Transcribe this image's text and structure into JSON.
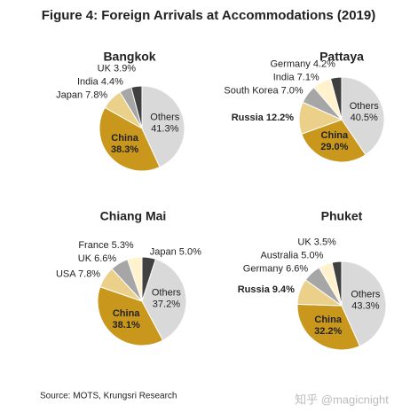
{
  "title": "Figure 4: Foreign Arrivals at Accommodations (2019)",
  "source": "Source: MOTS, Krungsri Research",
  "watermark": "知乎 @magicnight",
  "chart_data": [
    {
      "type": "pie",
      "title": "Bangkok",
      "categories": [
        "Others",
        "China",
        "Japan",
        "India",
        "UK"
      ],
      "values": [
        41.3,
        38.3,
        7.8,
        4.4,
        3.9
      ],
      "value_labels": [
        "41.3%",
        "38.3%",
        "7.8%",
        "4.4%",
        "3.9%"
      ],
      "colors": [
        "#d9d9d9",
        "#c9971c",
        "#ead089",
        "#a6a6a6",
        "#404040"
      ],
      "label_bold": [
        false,
        true,
        false,
        false,
        false
      ]
    },
    {
      "type": "pie",
      "title": "Pattaya",
      "categories": [
        "Others",
        "China",
        "Russia",
        "South Korea",
        "India",
        "Germany"
      ],
      "values": [
        40.5,
        29.0,
        12.2,
        7.0,
        7.1,
        4.2
      ],
      "value_labels": [
        "40.5%",
        "29.0%",
        "12.2%",
        "7.0%",
        "7.1%",
        "4.2%"
      ],
      "colors": [
        "#d9d9d9",
        "#c9971c",
        "#ead089",
        "#a6a6a6",
        "#fff2cc",
        "#404040"
      ],
      "label_bold": [
        false,
        true,
        true,
        false,
        false,
        false
      ]
    },
    {
      "type": "pie",
      "title": "Chiang Mai",
      "categories": [
        "Japan",
        "Others",
        "China",
        "USA",
        "UK",
        "France"
      ],
      "values": [
        5.0,
        37.2,
        38.1,
        7.8,
        6.6,
        5.3
      ],
      "value_labels": [
        "5.0%",
        "37.2%",
        "38.1%",
        "7.8%",
        "6.6%",
        "5.3%"
      ],
      "colors": [
        "#404040",
        "#d9d9d9",
        "#c9971c",
        "#ead089",
        "#a6a6a6",
        "#fff2cc"
      ],
      "label_bold": [
        false,
        false,
        true,
        false,
        false,
        false
      ]
    },
    {
      "type": "pie",
      "title": "Phuket",
      "categories": [
        "Others",
        "China",
        "Russia",
        "Germany",
        "Australia",
        "UK"
      ],
      "values": [
        43.3,
        32.2,
        9.4,
        6.6,
        5.0,
        3.5
      ],
      "value_labels": [
        "43.3%",
        "32.2%",
        "9.4%",
        "6.6%",
        "5.0%",
        "3.5%"
      ],
      "colors": [
        "#d9d9d9",
        "#c9971c",
        "#ead089",
        "#a6a6a6",
        "#fff2cc",
        "#404040"
      ],
      "label_bold": [
        false,
        true,
        true,
        false,
        false,
        false
      ]
    }
  ]
}
